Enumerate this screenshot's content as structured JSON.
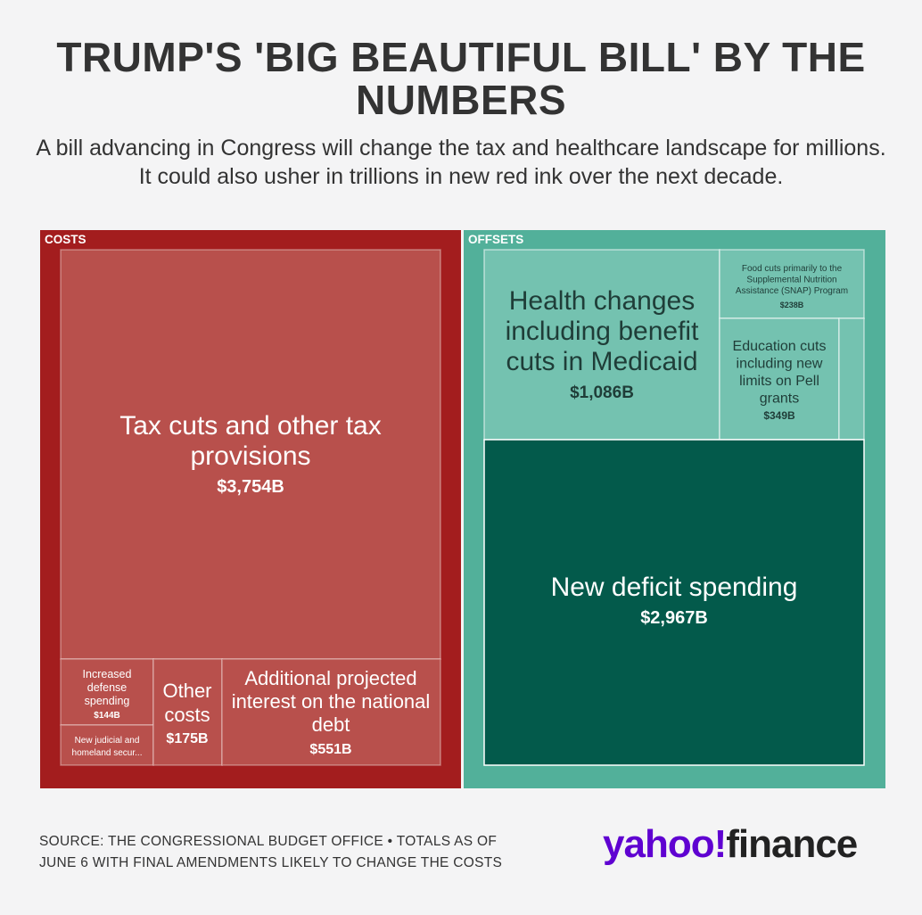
{
  "title": "TRUMP'S 'BIG BEAUTIFUL BILL' BY THE NUMBERS",
  "subtitle": "A bill advancing in Congress will change the tax and healthcare landscape for millions. It could also usher in trillions in new red ink over the next decade.",
  "colors": {
    "costs_group": "#a31d1e",
    "costs_cell": "#b8504c",
    "offsets_group": "#52b09a",
    "offsets_cell": "#74c2b0",
    "deficit_cell": "#035a4b",
    "background": "#f4f4f5",
    "logo_purple": "#5f01d1"
  },
  "chart_data": {
    "type": "treemap",
    "unit": "$B",
    "groups": [
      {
        "name": "COSTS",
        "items": [
          {
            "label": "Tax cuts and other tax provisions",
            "value": 3754,
            "value_label": "$3,754B"
          },
          {
            "label": "Additional projected interest on the national debt",
            "value": 551,
            "value_label": "$551B"
          },
          {
            "label": "Other costs",
            "value": 175,
            "value_label": "$175B"
          },
          {
            "label": "Increased defense spending",
            "value": 144,
            "value_label": "$144B"
          },
          {
            "label": "New judicial and homeland secur...",
            "value": null,
            "value_label": ""
          }
        ]
      },
      {
        "name": "OFFSETS",
        "items": [
          {
            "label": "New deficit spending",
            "value": 2967,
            "value_label": "$2,967B"
          },
          {
            "label": "Health changes including benefit cuts in Medicaid",
            "value": 1086,
            "value_label": "$1,086B"
          },
          {
            "label": "Education cuts including new limits on Pell grants",
            "value": 349,
            "value_label": "$349B"
          },
          {
            "label": "Food cuts primarily to the Supplemental Nutrition Assistance (SNAP) Program",
            "value": 238,
            "value_label": "$238B"
          }
        ]
      }
    ]
  },
  "source": {
    "line1": "SOURCE: THE CONGRESSIONAL BUDGET OFFICE • TOTALS AS OF",
    "line2": "JUNE 6 WITH FINAL AMENDMENTS LIKELY TO CHANGE THE COSTS"
  },
  "logo": {
    "part1": "yahoo!",
    "part2": "finance"
  }
}
